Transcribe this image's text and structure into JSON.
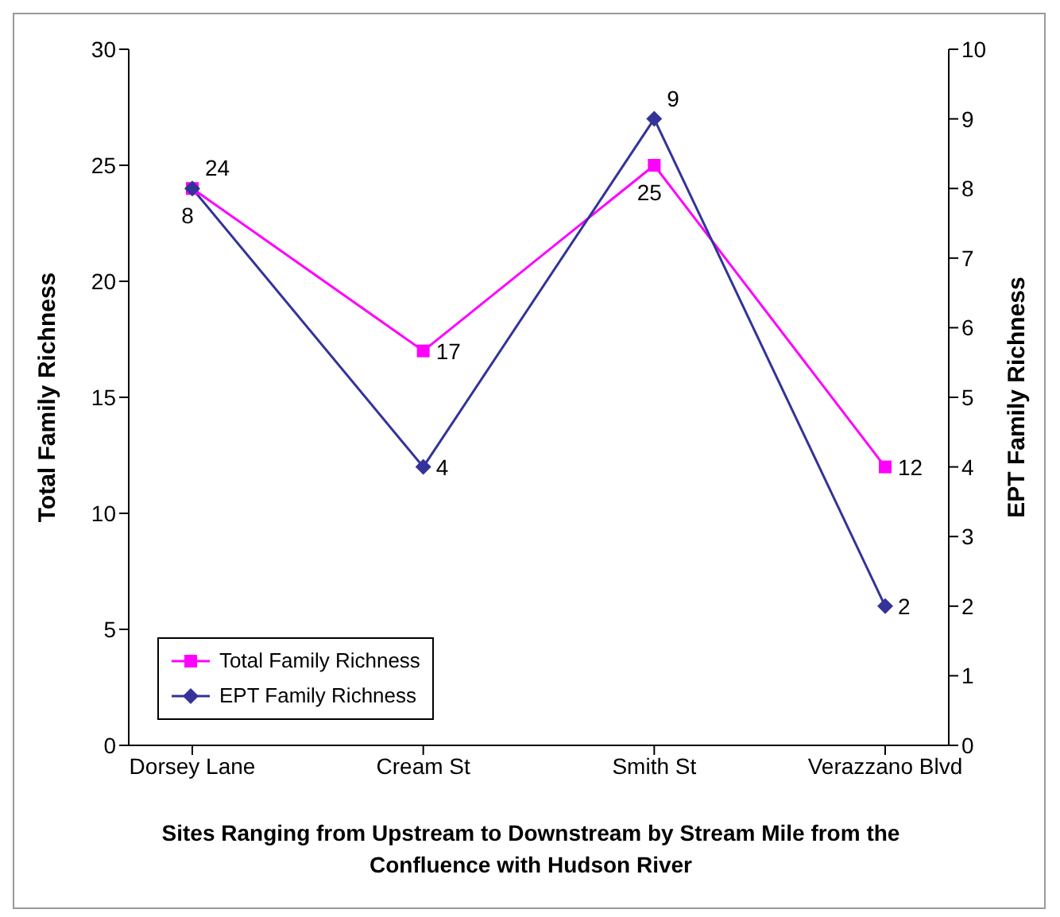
{
  "chart_data": {
    "type": "line",
    "xlabel": "Sites Ranging from Upstream to Downstream by Stream Mile from the Confluence with Hudson River",
    "ylabel": "Total Family Richness",
    "y2label": "EPT Family Richness",
    "categories": [
      "Dorsey Lane",
      "Cream St",
      "Smith St",
      "Verazzano Blvd"
    ],
    "series": [
      {
        "name": "Total Family Richness",
        "color": "#ff00ff",
        "marker": "square",
        "values": [
          24,
          17,
          25,
          12
        ]
      },
      {
        "name": "EPT Family Richness",
        "color": "#333399",
        "marker": "diamond",
        "axis": "y2",
        "values": [
          8,
          4,
          9,
          2
        ]
      }
    ],
    "ylim": [
      0,
      30
    ],
    "yticks": [
      0,
      5,
      10,
      15,
      20,
      25,
      30
    ],
    "y2lim": [
      0,
      10
    ],
    "y2ticks": [
      0,
      1,
      2,
      3,
      4,
      5,
      6,
      7,
      8,
      9,
      10
    ],
    "data_labels": true,
    "legend": "bottom left",
    "grid": false
  }
}
